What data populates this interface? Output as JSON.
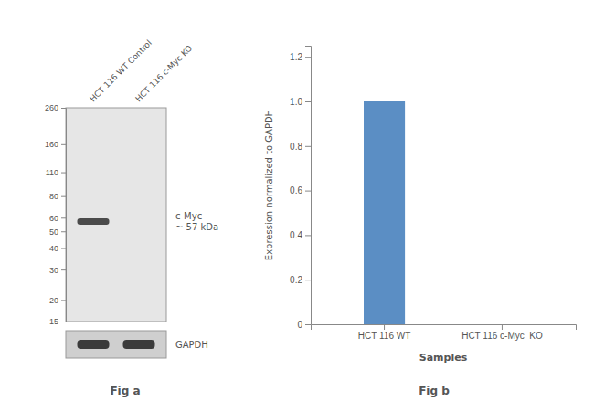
{
  "chart_data": [
    {
      "type": "blot",
      "title": "Fig a",
      "categories": [
        "HCT 116 WT Control",
        "HCT 116 c-Myc KO"
      ],
      "log": "y",
      "ylim": [
        15,
        260
      ],
      "yticks": [
        260,
        160,
        110,
        80,
        60,
        50,
        40,
        30,
        20,
        15
      ],
      "series": [
        {
          "name": "c-Myc\n~ 57 kDa",
          "color": "#3a3a3a",
          "values": [
            57,
            null
          ]
        }
      ],
      "annotations": [
        "GAPDH"
      ]
    },
    {
      "type": "bar",
      "title": "Fig b",
      "categories": [
        "HCT 116 WT",
        "HCT 116 c-Myc  KO"
      ],
      "values": [
        1.0,
        0.0
      ],
      "color": "#5b8ec4",
      "xlabel": "Samples",
      "ylabel": "Expression normalized to GAPDH",
      "ylim": [
        0,
        1.25
      ],
      "yticks": [
        0,
        0.2,
        0.4,
        0.6,
        0.8,
        {
          "value": 1.0,
          "label": "1.0"
        },
        1.2
      ]
    }
  ]
}
